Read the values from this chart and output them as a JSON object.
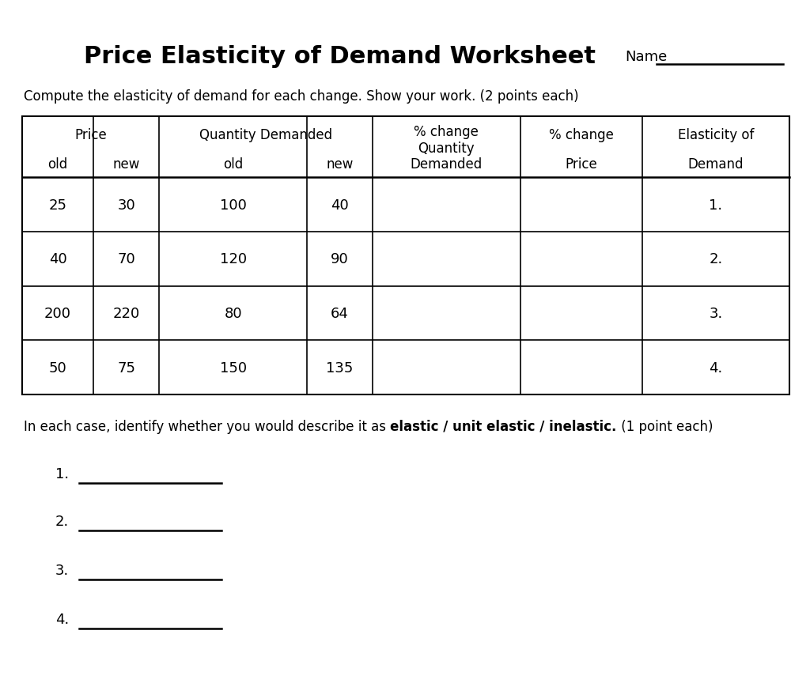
{
  "title": "Price Elasticity of Demand Worksheet",
  "name_label": "Name",
  "subtitle": "Compute the elasticity of demand for each change. Show your work. (2 points each)",
  "table_data": [
    [
      "25",
      "30",
      "100",
      "40",
      "",
      "",
      "1."
    ],
    [
      "40",
      "70",
      "120",
      "90",
      "",
      "",
      "2."
    ],
    [
      "200",
      "220",
      "80",
      "64",
      "",
      "",
      "3."
    ],
    [
      "50",
      "75",
      "150",
      "135",
      "",
      "",
      "4."
    ]
  ],
  "col_widths_pts": [
    70,
    65,
    145,
    65,
    145,
    120,
    145
  ],
  "bottom_instruction": "In each case, identify whether you would describe it as ",
  "bottom_bold": "elastic / unit elastic / inelastic.",
  "bottom_suffix": " (1 point each)",
  "answer_labels": [
    "1.",
    "2.",
    "3.",
    "4."
  ],
  "background_color": "#ffffff"
}
